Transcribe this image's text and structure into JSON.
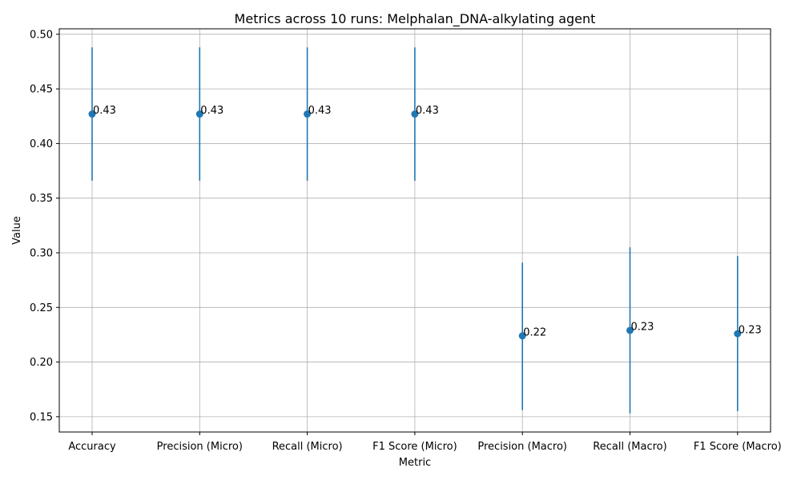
{
  "chart_data": {
    "type": "scatter",
    "title": "Metrics across 10 runs: Melphalan_DNA-alkylating agent",
    "xlabel": "Metric",
    "ylabel": "Value",
    "categories": [
      "Accuracy",
      "Precision (Micro)",
      "Recall (Micro)",
      "F1 Score (Micro)",
      "Precision (Macro)",
      "Recall (Macro)",
      "F1 Score (Macro)"
    ],
    "values": [
      0.427,
      0.427,
      0.427,
      0.427,
      0.224,
      0.229,
      0.226
    ],
    "error_low": [
      0.366,
      0.366,
      0.366,
      0.366,
      0.156,
      0.153,
      0.155
    ],
    "error_high": [
      0.488,
      0.488,
      0.488,
      0.488,
      0.291,
      0.305,
      0.297
    ],
    "data_labels": [
      "0.43",
      "0.43",
      "0.43",
      "0.43",
      "0.22",
      "0.23",
      "0.23"
    ],
    "yticks": [
      "0.15",
      "0.20",
      "0.25",
      "0.30",
      "0.35",
      "0.40",
      "0.45",
      "0.50"
    ],
    "ylim": [
      0.136,
      0.505
    ],
    "grid": true,
    "color": "#1f77b4"
  }
}
